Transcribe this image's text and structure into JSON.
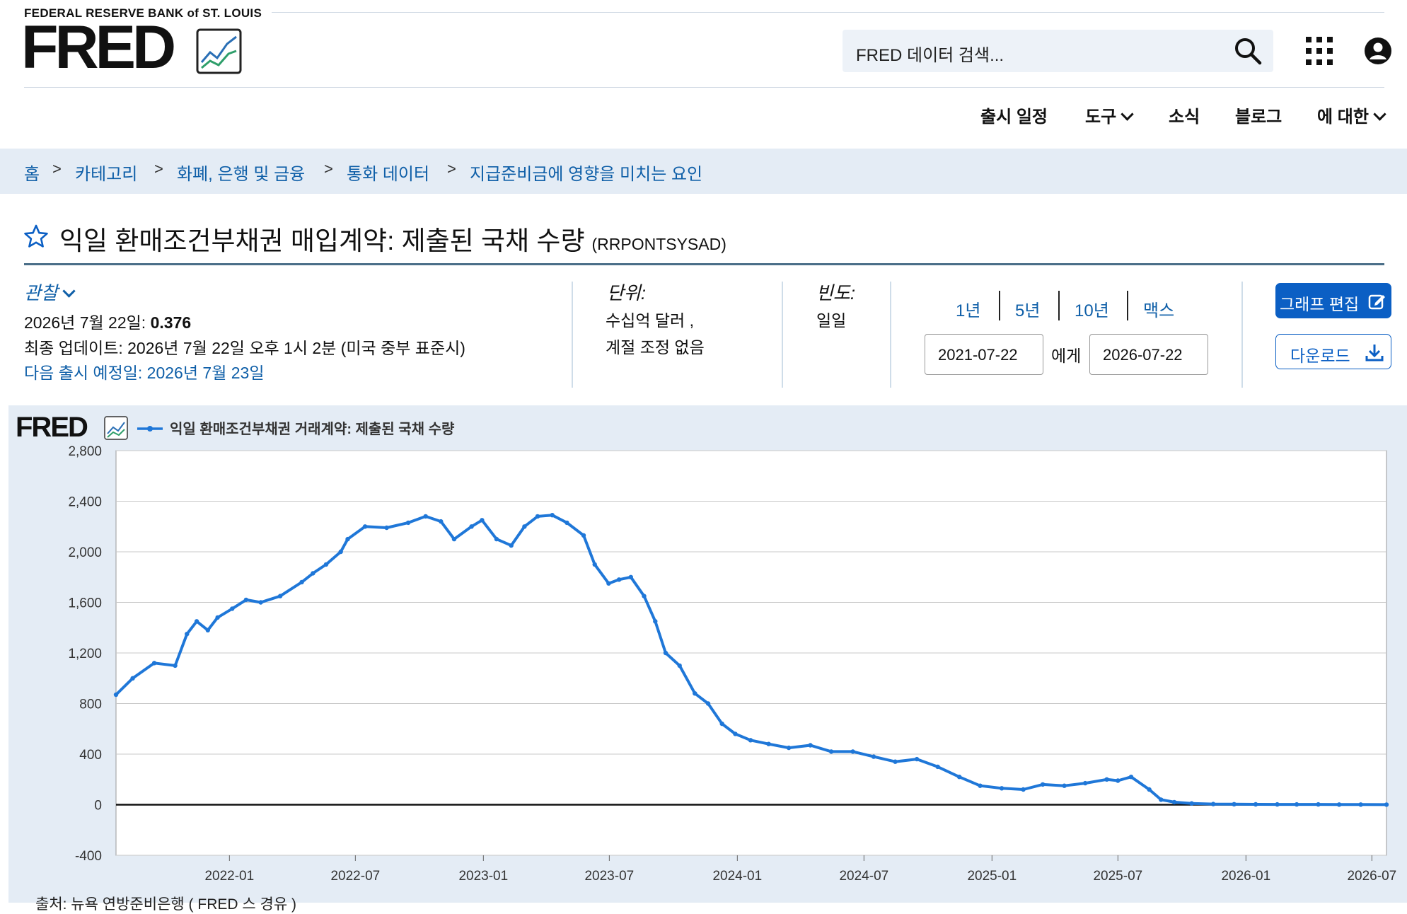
{
  "header": {
    "bank_name": "FEDERAL RESERVE BANK of ST. LOUIS",
    "logo_text": "FRED",
    "search_placeholder": "FRED 데이터 검색...",
    "nav": [
      "출시 일정",
      "도구",
      "소식",
      "블로그",
      "에 대한"
    ]
  },
  "breadcrumb": [
    "홈",
    "카테고리",
    "화폐, 은행 및 금융",
    "통화 데이터",
    "지급준비금에 영향을 미치는 요인"
  ],
  "series": {
    "title": "익일 환매조건부채권 매입계약: 제출된 국채 수량",
    "id": "(RRPONTSYSAD)"
  },
  "observation": {
    "label": "관찰",
    "date": "2026년 7월 22일:",
    "value": "0.376",
    "last_updated": "최종 업데이트: 2026년 7월 22일 오후 1시 2분 (미국 중부 표준시)",
    "next_release": "다음 출시 예정일: 2026년 7월 23일"
  },
  "units": {
    "label": "단위:",
    "line1": "수십억 달러 ,",
    "line2": "계절 조정 없음"
  },
  "frequency": {
    "label": "빈도:",
    "value": "일일"
  },
  "range": {
    "buttons": [
      "1년",
      "5년",
      "10년",
      "맥스"
    ],
    "start": "2021-07-22",
    "to_label": "에게",
    "end": "2026-07-22"
  },
  "actions": {
    "edit": "그래프 편집",
    "download": "다운로드"
  },
  "chart_source": "출처: 뉴욕 연방준비은행 ( FRED 스 경유 )",
  "chart_data": {
    "type": "line",
    "title": "",
    "legend": "익일 환매조건부채권 거래계약: 제출된 국채 수량",
    "logo": "FRED",
    "xlabel": "",
    "ylabel": "",
    "xlim": [
      "2021-07-22",
      "2026-07-22"
    ],
    "ylim": [
      -400,
      2800
    ],
    "y_ticks": [
      -400,
      0,
      400,
      800,
      1200,
      1600,
      2000,
      2400,
      2800
    ],
    "x_ticks": [
      "2022-01",
      "2022-07",
      "2023-01",
      "2023-07",
      "2024-01",
      "2024-07",
      "2025-01",
      "2025-07",
      "2026-01",
      "2026-07"
    ],
    "grid": true,
    "color": "#1f77d8",
    "series": [
      {
        "name": "익일 환매조건부채권 거래계약: 제출된 국채 수량",
        "x": [
          "2021-07-22",
          "2021-08-15",
          "2021-09-15",
          "2021-10-15",
          "2021-11-01",
          "2021-11-15",
          "2021-12-01",
          "2021-12-15",
          "2022-01-05",
          "2022-01-25",
          "2022-02-15",
          "2022-03-15",
          "2022-04-15",
          "2022-05-01",
          "2022-05-20",
          "2022-06-10",
          "2022-06-20",
          "2022-07-15",
          "2022-08-15",
          "2022-09-15",
          "2022-10-10",
          "2022-11-01",
          "2022-11-20",
          "2022-12-15",
          "2022-12-30",
          "2023-01-20",
          "2023-02-10",
          "2023-03-01",
          "2023-03-20",
          "2023-04-10",
          "2023-05-01",
          "2023-05-25",
          "2023-06-10",
          "2023-06-30",
          "2023-07-15",
          "2023-08-01",
          "2023-08-20",
          "2023-09-05",
          "2023-09-20",
          "2023-10-10",
          "2023-11-01",
          "2023-11-20",
          "2023-12-10",
          "2023-12-29",
          "2024-01-20",
          "2024-02-15",
          "2024-03-15",
          "2024-04-15",
          "2024-05-15",
          "2024-06-15",
          "2024-07-15",
          "2024-08-15",
          "2024-09-15",
          "2024-10-15",
          "2024-11-15",
          "2024-12-15",
          "2025-01-15",
          "2025-02-15",
          "2025-03-15",
          "2025-04-15",
          "2025-05-15",
          "2025-06-15",
          "2025-07-01",
          "2025-07-20",
          "2025-08-15",
          "2025-09-01",
          "2025-09-20",
          "2025-10-15",
          "2025-11-15",
          "2025-12-15",
          "2026-01-15",
          "2026-02-15",
          "2026-03-15",
          "2026-04-15",
          "2026-05-15",
          "2026-06-15",
          "2026-07-22"
        ],
        "y": [
          870,
          1000,
          1120,
          1100,
          1350,
          1450,
          1380,
          1480,
          1550,
          1620,
          1600,
          1650,
          1760,
          1830,
          1900,
          2000,
          2100,
          2200,
          2190,
          2230,
          2280,
          2240,
          2100,
          2200,
          2250,
          2100,
          2050,
          2200,
          2280,
          2290,
          2230,
          2130,
          1900,
          1750,
          1780,
          1800,
          1650,
          1450,
          1200,
          1100,
          880,
          800,
          640,
          560,
          510,
          480,
          450,
          470,
          420,
          420,
          380,
          340,
          360,
          300,
          220,
          150,
          130,
          120,
          160,
          150,
          170,
          200,
          190,
          220,
          120,
          40,
          20,
          10,
          5,
          4,
          3,
          2,
          2,
          2,
          1,
          1,
          0.376
        ]
      }
    ]
  }
}
